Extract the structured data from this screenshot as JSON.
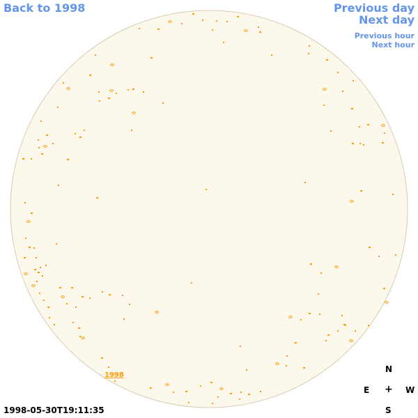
{
  "nav": {
    "back_label": "Back to 1998",
    "prev_day_label": "Previous day",
    "next_day_label": "Next day",
    "prev_hour_label": "Previous hour",
    "next_hour_label": "Next hour"
  },
  "compass": {
    "n": "N",
    "e": "E",
    "center": "+",
    "w": "W",
    "s": "S"
  },
  "timestamp": "1998-05-30T19:11:35",
  "year_label": "1998",
  "colors": {
    "sky_fill": "#fdf8ec",
    "sky_border": "#d8ccb0",
    "marker": "#ff9900",
    "nav": "#6495ed"
  }
}
